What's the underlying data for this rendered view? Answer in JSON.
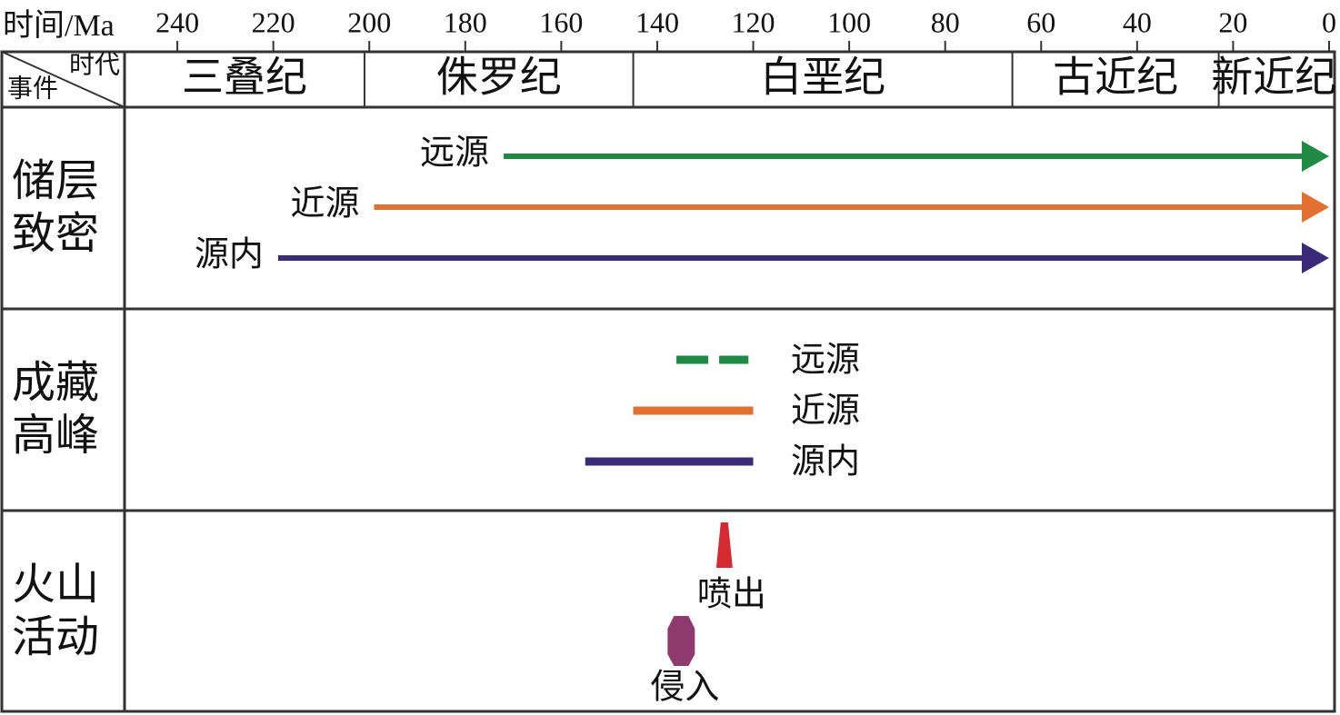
{
  "chart_data": {
    "type": "timeline",
    "x_label": "时间/Ma",
    "header_top": "时代",
    "header_bottom": "事件",
    "xlim": [
      251,
      0
    ],
    "xticks": [
      240,
      220,
      200,
      180,
      160,
      140,
      120,
      100,
      80,
      60,
      40,
      20,
      0
    ],
    "periods": [
      {
        "name": "三叠纪",
        "start": 251,
        "end": 201
      },
      {
        "name": "侏罗纪",
        "start": 201,
        "end": 145
      },
      {
        "name": "白垩纪",
        "start": 145,
        "end": 66
      },
      {
        "name": "古近纪",
        "start": 66,
        "end": 23
      },
      {
        "name": "新近纪",
        "start": 23,
        "end": 0
      }
    ],
    "rows": [
      {
        "label": "储层致密",
        "style": "arrow",
        "series": [
          {
            "name": "远源",
            "color": "#1f8a43",
            "start": 172,
            "end": 0
          },
          {
            "name": "近源",
            "color": "#e2702f",
            "start": 199,
            "end": 0
          },
          {
            "name": "源内",
            "color": "#3b2a78",
            "start": 219,
            "end": 0
          }
        ]
      },
      {
        "label": "成藏高峰",
        "style": "bar",
        "series": [
          {
            "name": "远源",
            "color": "#1f8a43",
            "start": 136,
            "end": 121,
            "dashed": true
          },
          {
            "name": "近源",
            "color": "#e2702f",
            "start": 145,
            "end": 120
          },
          {
            "name": "源内",
            "color": "#3b2a78",
            "start": 155,
            "end": 120
          }
        ]
      },
      {
        "label": "火山活动",
        "style": "event",
        "series": [
          {
            "name": "喷出",
            "color": "#d42a30",
            "value": 126
          },
          {
            "name": "侵入",
            "color": "#8e3a6e",
            "value": 135
          }
        ]
      }
    ]
  }
}
